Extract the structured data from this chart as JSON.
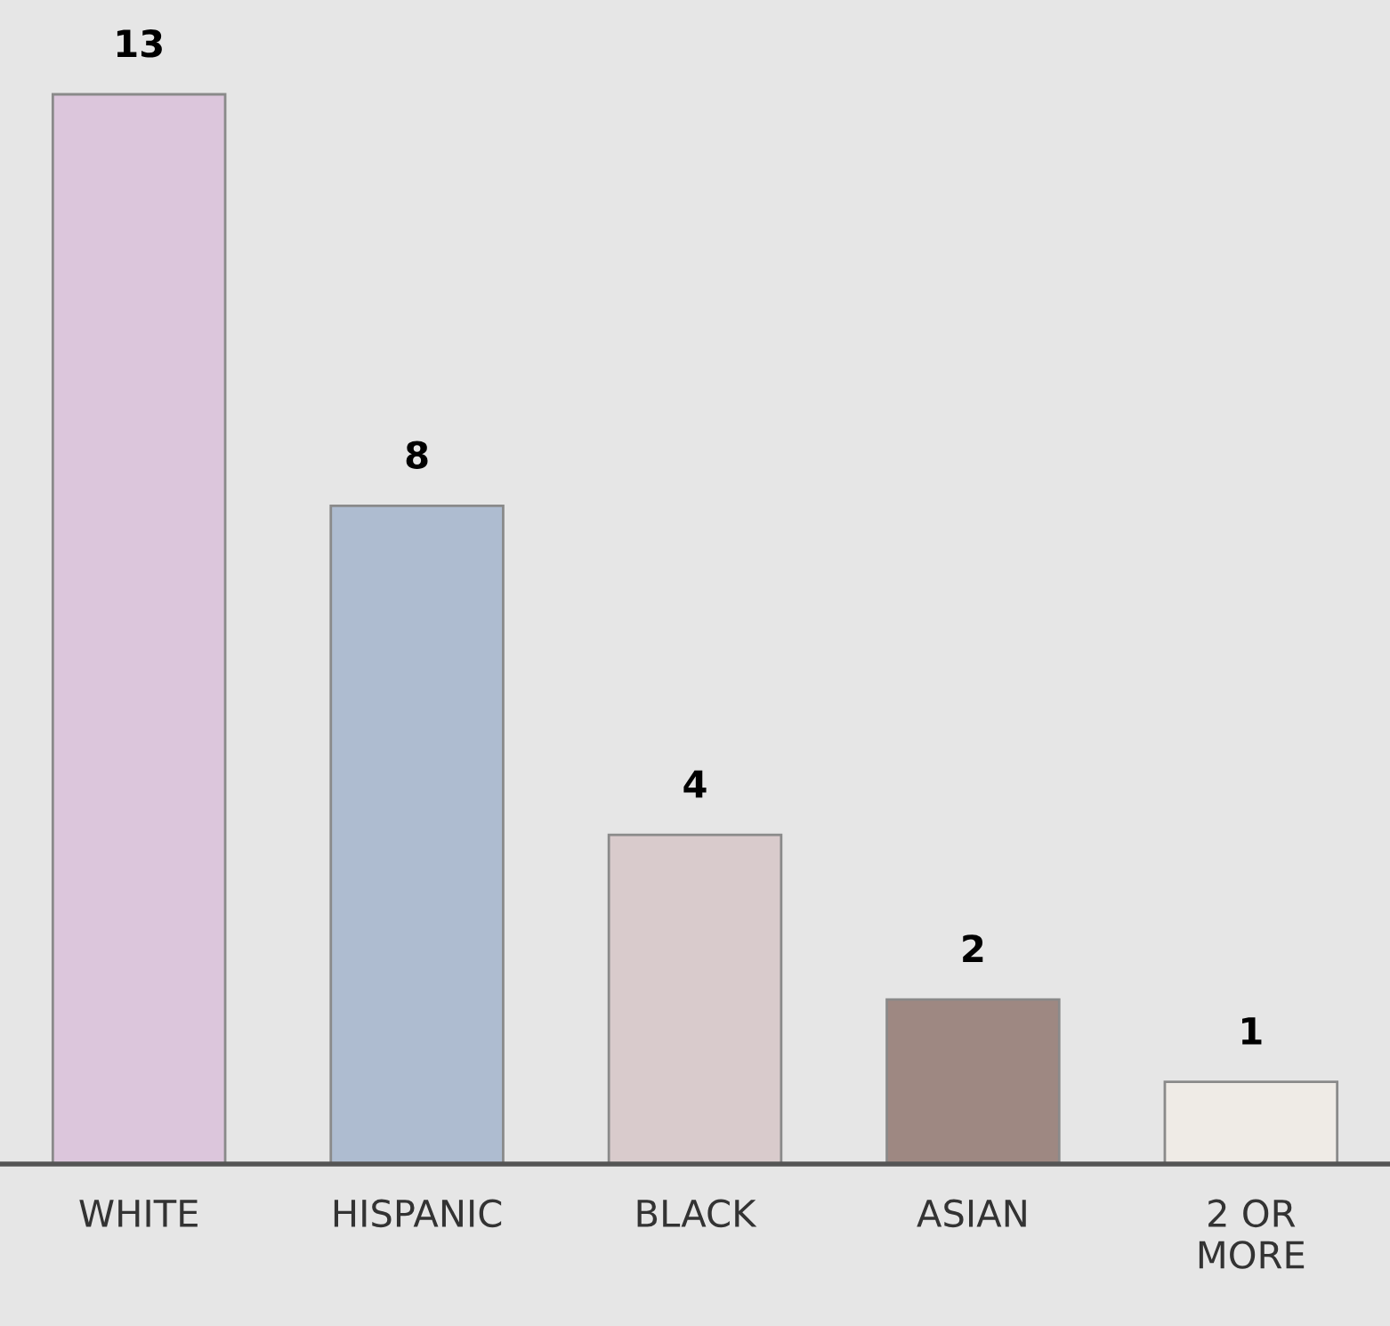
{
  "chart_data": {
    "type": "bar",
    "categories": [
      "WHITE",
      "HISPANIC",
      "BLACK",
      "ASIAN",
      "2 OR\nMORE"
    ],
    "values": [
      13,
      8,
      4,
      2,
      1
    ],
    "colors": [
      "#dcc6dc",
      "#aebcd0",
      "#d9cbcc",
      "#9e8882",
      "#efebe6"
    ],
    "data_labels": true,
    "grid": false,
    "legend": false
  }
}
